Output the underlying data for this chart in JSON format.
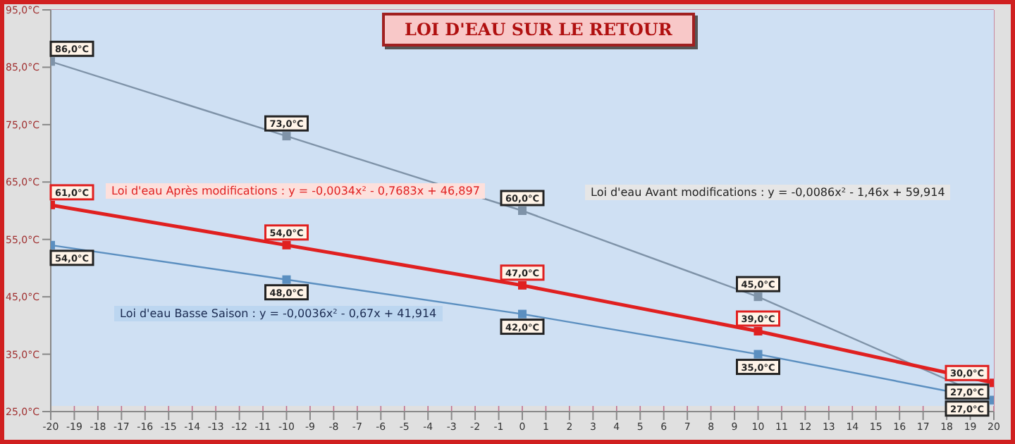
{
  "chart_data": {
    "type": "line",
    "title": "LOI D'EAU SUR LE RETOUR",
    "x": [
      -20,
      -10,
      0,
      10,
      20
    ],
    "series": [
      {
        "color": "#7f93a8",
        "values": [
          86,
          73,
          60,
          45,
          27
        ],
        "value_labels": [
          "86,0°C",
          "73,0°C",
          "60,0°C",
          "45,0°C",
          "27,0°C"
        ]
      },
      {
        "color": "#e02020",
        "values": [
          61,
          54,
          47,
          39,
          30
        ],
        "value_labels": [
          "61,0°C",
          "54,0°C",
          "47,0°C",
          "39,0°C",
          "30,0°C"
        ]
      },
      {
        "color": "#5b8fc0",
        "values": [
          54,
          48,
          42,
          35,
          27
        ],
        "value_labels": [
          "54,0°C",
          "48,0°C",
          "42,0°C",
          "35,0°C",
          "27,0°C"
        ]
      }
    ],
    "xlim": [
      -20,
      20
    ],
    "xticks": [
      -20,
      -19,
      -18,
      -17,
      -16,
      -15,
      -14,
      -13,
      -12,
      -11,
      -10,
      -9,
      -8,
      -7,
      -6,
      -5,
      -4,
      -3,
      -2,
      -1,
      0,
      1,
      2,
      3,
      4,
      5,
      6,
      7,
      8,
      9,
      10,
      11,
      12,
      13,
      14,
      15,
      16,
      17,
      18,
      19,
      20
    ],
    "ylim": [
      25,
      95
    ],
    "yticks": [
      {
        "value": 25,
        "label": "25,0°C"
      },
      {
        "value": 35,
        "label": "35,0°C"
      },
      {
        "value": 45,
        "label": "45,0°C"
      },
      {
        "value": 55,
        "label": "55,0°C"
      },
      {
        "value": 65,
        "label": "65,0°C"
      },
      {
        "value": 75,
        "label": "75,0°C"
      },
      {
        "value": 85,
        "label": "85,0°C"
      },
      {
        "value": 95,
        "label": "95,0°C"
      }
    ],
    "grid": true,
    "marker": "square",
    "line_style": "solid",
    "annotations": [
      "Loi d'eau Après modifications  : y = -0,0034x² - 0,7683x + 46,897",
      "Loi d'eau Avant modifications  : y = -0,0086x² - 1,46x + 59,914",
      "Loi d'eau Basse Saison :  y = -0,0036x² - 0,67x + 41,914"
    ]
  }
}
